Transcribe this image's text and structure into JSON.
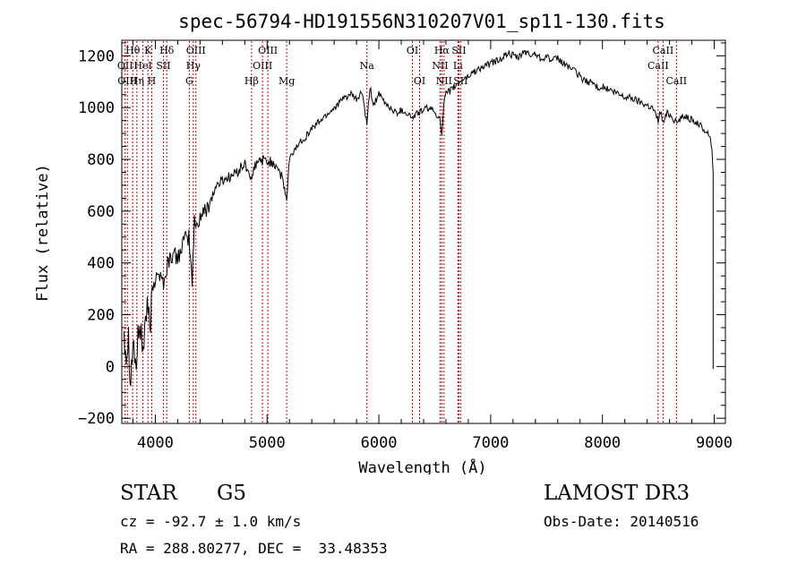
{
  "chart_data": {
    "type": "line",
    "title": "spec-56794-HD191556N310207V01_sp11-130.fits",
    "xlabel": "Wavelength (Å)",
    "ylabel": "Flux (relative)",
    "xlim": [
      3700,
      9100
    ],
    "ylim": [
      -220,
      1260
    ],
    "xticks": [
      4000,
      5000,
      6000,
      7000,
      8000,
      9000
    ],
    "yticks": [
      -200,
      0,
      200,
      400,
      600,
      800,
      1000,
      1200
    ],
    "series": [
      {
        "name": "flux",
        "color": "#000000",
        "x": [
          3720,
          3740,
          3760,
          3780,
          3800,
          3830,
          3860,
          3890,
          3920,
          3950,
          3980,
          4010,
          4040,
          4080,
          4110,
          4150,
          4200,
          4250,
          4300,
          4330,
          4350,
          4370,
          4400,
          4450,
          4500,
          4550,
          4600,
          4650,
          4700,
          4750,
          4800,
          4850,
          4861,
          4880,
          4900,
          4950,
          5000,
          5050,
          5100,
          5150,
          5175,
          5200,
          5250,
          5300,
          5350,
          5400,
          5450,
          5500,
          5550,
          5600,
          5650,
          5700,
          5750,
          5800,
          5850,
          5893,
          5920,
          5950,
          6000,
          6050,
          6100,
          6150,
          6200,
          6250,
          6300,
          6350,
          6400,
          6450,
          6500,
          6550,
          6563,
          6580,
          6600,
          6650,
          6700,
          6750,
          6800,
          6850,
          6900,
          6950,
          7000,
          7050,
          7100,
          7150,
          7200,
          7250,
          7300,
          7350,
          7400,
          7450,
          7500,
          7550,
          7600,
          7650,
          7700,
          7750,
          7800,
          7850,
          7900,
          7950,
          8000,
          8050,
          8100,
          8150,
          8200,
          8250,
          8300,
          8350,
          8400,
          8450,
          8498,
          8520,
          8542,
          8580,
          8620,
          8662,
          8700,
          8750,
          8800,
          8850,
          8900,
          8950,
          8980,
          8990
        ],
        "values": [
          150,
          50,
          120,
          -50,
          100,
          0,
          180,
          60,
          220,
          150,
          300,
          380,
          350,
          320,
          400,
          430,
          420,
          480,
          500,
          330,
          560,
          540,
          580,
          600,
          650,
          700,
          720,
          730,
          740,
          760,
          780,
          740,
          700,
          760,
          780,
          800,
          790,
          790,
          770,
          700,
          640,
          800,
          840,
          870,
          890,
          920,
          940,
          960,
          980,
          1000,
          1020,
          1040,
          1050,
          1030,
          1060,
          930,
          1080,
          1010,
          1050,
          1020,
          1000,
          980,
          990,
          980,
          960,
          980,
          990,
          1000,
          980,
          960,
          880,
          1010,
          1050,
          1070,
          1090,
          1110,
          1120,
          1140,
          1150,
          1160,
          1170,
          1180,
          1190,
          1210,
          1200,
          1190,
          1220,
          1200,
          1210,
          1190,
          1200,
          1180,
          1190,
          1170,
          1160,
          1140,
          1120,
          1100,
          1100,
          1080,
          1080,
          1070,
          1060,
          1050,
          1040,
          1040,
          1030,
          1020,
          1010,
          1000,
          950,
          990,
          940,
          980,
          970,
          940,
          960,
          970,
          950,
          940,
          920,
          900,
          850,
          750
        ]
      }
    ],
    "lines": [
      {
        "x": 3730,
        "label": "OII",
        "row": 1
      },
      {
        "x": 3750,
        "label": "OIII",
        "row": 2
      },
      {
        "x": 3798,
        "label": "Hθ",
        "row": 0
      },
      {
        "x": 3835,
        "label": "Hη",
        "row": 2
      },
      {
        "x": 3889,
        "label": "HeI",
        "row": 1
      },
      {
        "x": 3934,
        "label": "K",
        "row": 0
      },
      {
        "x": 3968,
        "label": "H",
        "row": 2
      },
      {
        "x": 4072,
        "label": "SII",
        "row": 1
      },
      {
        "x": 4102,
        "label": "Hδ",
        "row": 0
      },
      {
        "x": 4304,
        "label": "G",
        "row": 2
      },
      {
        "x": 4340,
        "label": "Hγ",
        "row": 1
      },
      {
        "x": 4363,
        "label": "OIII",
        "row": 0
      },
      {
        "x": 4861,
        "label": "Hβ",
        "row": 2
      },
      {
        "x": 4959,
        "label": "OIII",
        "row": 1
      },
      {
        "x": 5007,
        "label": "OIII",
        "row": 0
      },
      {
        "x": 5175,
        "label": "Mg",
        "row": 2
      },
      {
        "x": 5893,
        "label": "Na",
        "row": 1
      },
      {
        "x": 6300,
        "label": "OI",
        "row": 0
      },
      {
        "x": 6364,
        "label": "OI",
        "row": 2
      },
      {
        "x": 6548,
        "label": "NII",
        "row": 1
      },
      {
        "x": 6563,
        "label": "Hα",
        "row": 0
      },
      {
        "x": 6583,
        "label": "NII",
        "row": 2
      },
      {
        "x": 6707,
        "label": "Li",
        "row": 1
      },
      {
        "x": 6716,
        "label": "SII",
        "row": 0
      },
      {
        "x": 6731,
        "label": "SII",
        "row": 2
      },
      {
        "x": 8498,
        "label": "CaII",
        "row": 1
      },
      {
        "x": 8542,
        "label": "CaII",
        "row": 0
      },
      {
        "x": 8662,
        "label": "CaII",
        "row": 2
      }
    ]
  },
  "info": {
    "class": "STAR",
    "subclass": "G5",
    "survey": "LAMOST DR3",
    "redshift": "cz = -92.7 ± 1.0 km/s",
    "obs_date": "Obs-Date: 20140516",
    "coords": "RA = 288.80277, DEC =  33.48353"
  }
}
